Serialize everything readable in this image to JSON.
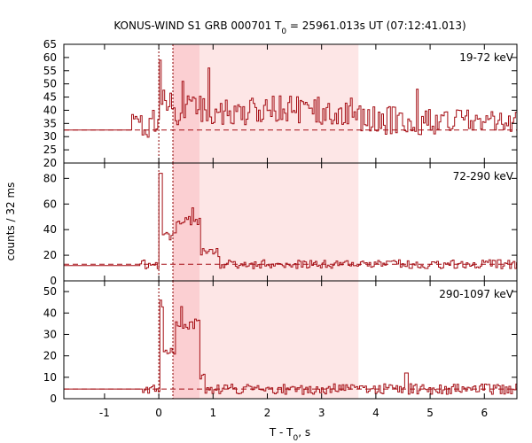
{
  "chart_data": {
    "type": "line",
    "title": {
      "main": "KONUS-WIND S1 GRB 000701 T",
      "sub": "0",
      "rest": " = 25961.013s UT (07:12:41.013)"
    },
    "ylabel": "counts / 32 ms",
    "xlabel": {
      "main": "T - T",
      "sub": "0",
      "rest": ", s"
    },
    "xlim": [
      -1.75,
      6.6
    ],
    "xticks": [
      -1,
      0,
      1,
      2,
      3,
      4,
      5,
      6
    ],
    "bin_width_s": 0.032,
    "highlight_intervals": [
      {
        "name": "light",
        "from": 0.26,
        "to": 3.68,
        "color": "#fde6e6"
      },
      {
        "name": "dark",
        "from": 0.26,
        "to": 0.75,
        "color": "#fbcfd2"
      }
    ],
    "markers": [
      {
        "name": "t0",
        "x": 0.0,
        "color": "#8b0000"
      },
      {
        "name": "tpeak",
        "x": 0.26,
        "color": "#8b0000"
      }
    ],
    "line_color": "#a50f15",
    "panels": [
      {
        "label": "19-72 keV",
        "ylim": [
          20,
          65
        ],
        "yticks": [
          20,
          25,
          30,
          35,
          40,
          45,
          50,
          55,
          60,
          65
        ],
        "background": 32.5,
        "series": {
          "pre_level": 32.5,
          "pre_until": -0.5,
          "segments": [
            {
              "from": -0.5,
              "to": 0.0,
              "mean": 35
            },
            {
              "from": 0.0,
              "to": 0.26,
              "mean": 45
            },
            {
              "from": 0.26,
              "to": 3.7,
              "mean": 40
            },
            {
              "from": 3.7,
              "to": 6.6,
              "mean": 36
            }
          ],
          "noise": 5.5,
          "spikes": [
            {
              "x": 0.02,
              "value": 59
            },
            {
              "x": 0.42,
              "value": 51
            },
            {
              "x": 0.9,
              "value": 56
            },
            {
              "x": 4.75,
              "value": 48
            }
          ]
        }
      },
      {
        "label": "72-290 keV",
        "ylim": [
          0,
          92
        ],
        "yticks": [
          0,
          20,
          40,
          60,
          80
        ],
        "background": 13,
        "series": {
          "pre_level": 12,
          "pre_until": -0.35,
          "segments": [
            {
              "from": -0.35,
              "to": 0.0,
              "mean": 13
            },
            {
              "from": 0.0,
              "to": 0.06,
              "mean": 80
            },
            {
              "from": 0.06,
              "to": 0.3,
              "mean": 35
            },
            {
              "from": 0.3,
              "to": 0.75,
              "mean": 47
            },
            {
              "from": 0.75,
              "to": 1.1,
              "mean": 22
            },
            {
              "from": 1.1,
              "to": 6.6,
              "mean": 13
            }
          ],
          "noise": 3.5,
          "spikes": [
            {
              "x": 0.02,
              "value": 84
            },
            {
              "x": 0.62,
              "value": 57
            }
          ]
        }
      },
      {
        "label": "290-1097 keV",
        "ylim": [
          0,
          55
        ],
        "yticks": [
          0,
          10,
          20,
          30,
          40,
          50
        ],
        "background": 4.5,
        "series": {
          "pre_level": 4.5,
          "pre_until": -0.3,
          "segments": [
            {
              "from": -0.3,
              "to": 0.0,
              "mean": 4
            },
            {
              "from": 0.0,
              "to": 0.06,
              "mean": 44
            },
            {
              "from": 0.06,
              "to": 0.28,
              "mean": 22
            },
            {
              "from": 0.28,
              "to": 0.75,
              "mean": 35
            },
            {
              "from": 0.75,
              "to": 0.85,
              "mean": 10
            },
            {
              "from": 0.85,
              "to": 6.6,
              "mean": 4.5
            }
          ],
          "noise": 2.5,
          "spikes": [
            {
              "x": 0.02,
              "value": 46
            },
            {
              "x": 0.4,
              "value": 43
            },
            {
              "x": 4.55,
              "value": 12
            }
          ]
        }
      }
    ]
  }
}
